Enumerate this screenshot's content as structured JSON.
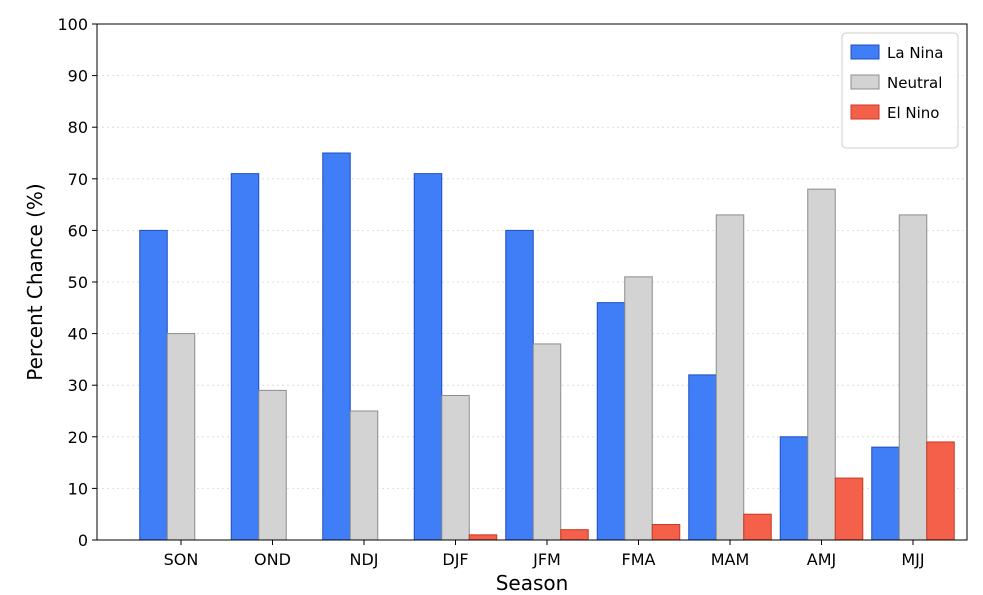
{
  "chart_data": {
    "type": "bar",
    "xlabel": "Season",
    "ylabel": "Percent Chance (%)",
    "ylim": [
      0,
      100
    ],
    "yticks": [
      0,
      10,
      20,
      30,
      40,
      50,
      60,
      70,
      80,
      90,
      100
    ],
    "categories": [
      "SON",
      "OND",
      "NDJ",
      "DJF",
      "JFM",
      "FMA",
      "MAM",
      "AMJ",
      "MJJ"
    ],
    "grid": "horizontal",
    "legend_position": "top-right",
    "series": [
      {
        "name": "La Nina",
        "color": "#3f7ef6",
        "edge": "#1e4fbf",
        "values": [
          60,
          71,
          75,
          71,
          60,
          46,
          32,
          20,
          18
        ]
      },
      {
        "name": "Neutral",
        "color": "#d3d3d3",
        "edge": "#8c8c8c",
        "values": [
          40,
          29,
          25,
          28,
          38,
          51,
          63,
          68,
          63
        ]
      },
      {
        "name": "El Nino",
        "color": "#f4604a",
        "edge": "#c63a25",
        "values": [
          0,
          0,
          0,
          1,
          2,
          3,
          5,
          12,
          19
        ]
      }
    ]
  }
}
